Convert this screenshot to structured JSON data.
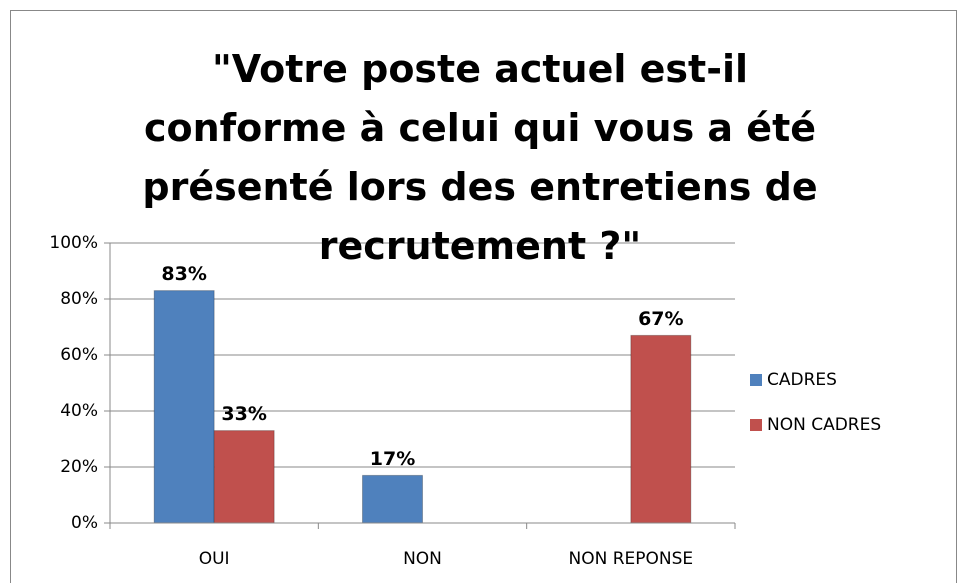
{
  "chart_data": {
    "type": "bar",
    "title": "\"Votre poste actuel est-il conforme à celui qui vous a été présenté lors des entretiens de recrutement ?\"",
    "categories": [
      "OUI",
      "NON",
      "NON REPONSE"
    ],
    "series": [
      {
        "name": "CADRES",
        "color": "#4f81bd",
        "values": [
          83,
          17,
          null
        ],
        "value_labels": [
          "83%",
          "17%",
          null
        ]
      },
      {
        "name": "NON CADRES",
        "color": "#c0504d",
        "values": [
          33,
          null,
          67
        ],
        "value_labels": [
          "33%",
          null,
          "67%"
        ]
      }
    ],
    "ylim": [
      0,
      100
    ],
    "yticks": [
      {
        "value": 0,
        "label": "0%"
      },
      {
        "value": 20,
        "label": "20%"
      },
      {
        "value": 40,
        "label": "40%"
      },
      {
        "value": 60,
        "label": "60%"
      },
      {
        "value": 80,
        "label": "80%"
      },
      {
        "value": 100,
        "label": "100%"
      }
    ],
    "grid": true,
    "legend": "right"
  }
}
